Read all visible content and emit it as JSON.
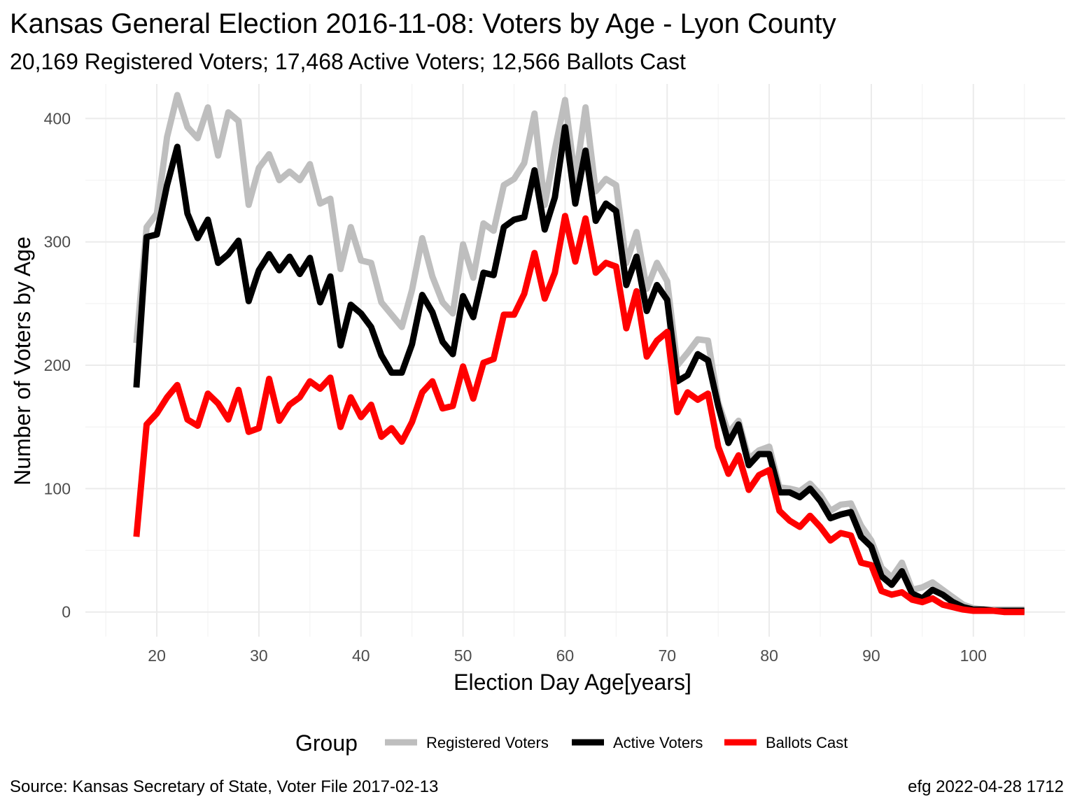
{
  "title": "Kansas General Election 2016-11-08:  Voters by Age - Lyon County",
  "subtitle": "20,169 Registered Voters; 17,468 Active Voters; 12,566 Ballots Cast",
  "caption_left": "Source:  Kansas Secretary of State, Voter File  2017-02-13",
  "caption_right": "efg 2022-04-28 1712",
  "chart_data": {
    "type": "line",
    "xlabel": "Election Day Age[years]",
    "ylabel": "Number of Voters by Age",
    "xlim": [
      13,
      109
    ],
    "ylim": [
      -20,
      428
    ],
    "x_ticks": [
      20,
      30,
      40,
      50,
      60,
      70,
      80,
      90,
      100
    ],
    "y_ticks": [
      0,
      100,
      200,
      300,
      400
    ],
    "grid": true,
    "legend": {
      "title": "Group",
      "position": "bottom"
    },
    "x": [
      18,
      19,
      20,
      21,
      22,
      23,
      24,
      25,
      26,
      27,
      28,
      29,
      30,
      31,
      32,
      33,
      34,
      35,
      36,
      37,
      38,
      39,
      40,
      41,
      42,
      43,
      44,
      45,
      46,
      47,
      48,
      49,
      50,
      51,
      52,
      53,
      54,
      55,
      56,
      57,
      58,
      59,
      60,
      61,
      62,
      63,
      64,
      65,
      66,
      67,
      68,
      69,
      70,
      71,
      72,
      73,
      74,
      75,
      76,
      77,
      78,
      79,
      80,
      81,
      82,
      83,
      84,
      85,
      86,
      87,
      88,
      89,
      90,
      91,
      92,
      93,
      94,
      95,
      96,
      97,
      98,
      99,
      100,
      101,
      102,
      103,
      104,
      105
    ],
    "series": [
      {
        "name": "Registered Voters",
        "color": "#bebebe",
        "values": [
          218,
          312,
          323,
          385,
          419,
          393,
          384,
          409,
          370,
          405,
          398,
          330,
          360,
          371,
          350,
          357,
          350,
          363,
          331,
          335,
          278,
          312,
          285,
          283,
          251,
          241,
          231,
          261,
          303,
          272,
          251,
          242,
          298,
          271,
          315,
          309,
          346,
          351,
          364,
          404,
          330,
          375,
          415,
          350,
          409,
          341,
          351,
          346,
          283,
          308,
          262,
          283,
          268,
          200,
          210,
          221,
          220,
          170,
          145,
          155,
          124,
          131,
          134,
          101,
          100,
          98,
          104,
          95,
          82,
          87,
          88,
          70,
          58,
          36,
          28,
          40,
          18,
          20,
          24,
          18,
          12,
          6,
          3,
          2,
          2,
          2,
          2,
          2
        ],
        "line_data": "registered"
      },
      {
        "name": "Active Voters",
        "color": "#000000",
        "values": [
          182,
          304,
          306,
          346,
          377,
          323,
          303,
          318,
          283,
          290,
          301,
          252,
          277,
          290,
          277,
          288,
          274,
          287,
          251,
          272,
          216,
          249,
          242,
          231,
          208,
          194,
          194,
          217,
          257,
          243,
          219,
          209,
          256,
          239,
          275,
          273,
          312,
          318,
          320,
          358,
          310,
          336,
          393,
          331,
          374,
          317,
          331,
          325,
          265,
          288,
          244,
          265,
          253,
          187,
          192,
          209,
          204,
          167,
          137,
          152,
          119,
          128,
          128,
          97,
          97,
          93,
          100,
          90,
          76,
          79,
          81,
          61,
          53,
          29,
          22,
          33,
          15,
          11,
          18,
          14,
          8,
          4,
          2,
          2,
          1,
          1,
          1,
          1
        ],
        "line_data": "active"
      },
      {
        "name": "Ballots Cast",
        "color": "#ff0000",
        "values": [
          61,
          152,
          161,
          174,
          184,
          156,
          151,
          177,
          169,
          156,
          180,
          146,
          149,
          189,
          155,
          168,
          174,
          187,
          181,
          190,
          150,
          174,
          158,
          168,
          142,
          149,
          138,
          154,
          178,
          187,
          165,
          167,
          199,
          173,
          202,
          205,
          241,
          241,
          258,
          291,
          254,
          275,
          321,
          284,
          319,
          275,
          283,
          280,
          230,
          260,
          207,
          220,
          227,
          162,
          178,
          172,
          177,
          134,
          112,
          127,
          99,
          111,
          115,
          82,
          74,
          69,
          78,
          69,
          58,
          64,
          62,
          40,
          38,
          17,
          14,
          16,
          10,
          8,
          11,
          6,
          4,
          2,
          1,
          1,
          1,
          0,
          0,
          0
        ],
        "line_data": "ballots"
      }
    ]
  }
}
